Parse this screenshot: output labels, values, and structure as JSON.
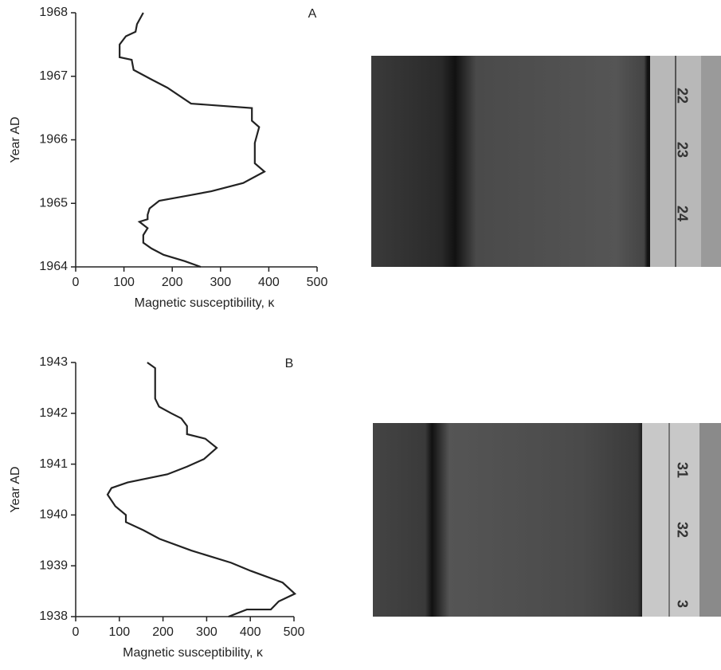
{
  "chart_data": [
    {
      "type": "line",
      "annotation": "A",
      "xlabel": "Magnetic susceptibility, κ",
      "ylabel": "Year AD",
      "color": "#222222",
      "xlim": [
        0,
        500
      ],
      "xticks": [
        0,
        100,
        200,
        300,
        400,
        500
      ],
      "ylim": [
        1964,
        1968
      ],
      "yticks": [
        1964,
        1965,
        1966,
        1967,
        1968
      ],
      "values": [
        140,
        127,
        124,
        104,
        91,
        91,
        116,
        120,
        157,
        190,
        239,
        365,
        365,
        380,
        371,
        371,
        391,
        347,
        281,
        231,
        173,
        153,
        149,
        149,
        132,
        149,
        140,
        140,
        157,
        182,
        226,
        259
      ],
      "y": [
        1968.0,
        1967.82,
        1967.7,
        1967.63,
        1967.5,
        1967.3,
        1967.26,
        1967.1,
        1966.95,
        1966.82,
        1966.57,
        1966.5,
        1966.3,
        1966.2,
        1965.95,
        1965.63,
        1965.5,
        1965.32,
        1965.19,
        1965.12,
        1965.04,
        1964.92,
        1964.82,
        1964.75,
        1964.71,
        1964.61,
        1964.5,
        1964.38,
        1964.29,
        1964.19,
        1964.09,
        1964.0
      ]
    },
    {
      "type": "line",
      "annotation": "B",
      "xlabel": "Magnetic susceptibility, κ",
      "ylabel": "Year AD",
      "color": "#222222",
      "xlim": [
        0,
        500
      ],
      "xticks": [
        0,
        100,
        200,
        300,
        400,
        500
      ],
      "ylim": [
        1938,
        1943
      ],
      "yticks": [
        1938,
        1939,
        1940,
        1941,
        1942,
        1943
      ],
      "values": [
        164,
        182,
        182,
        191,
        219,
        242,
        255,
        255,
        297,
        323,
        294,
        255,
        210,
        119,
        82,
        73,
        91,
        115,
        115,
        155,
        192,
        265,
        356,
        401,
        474,
        502,
        465,
        447,
        392,
        350
      ],
      "y": [
        1943.0,
        1942.89,
        1942.29,
        1942.13,
        1942.0,
        1941.9,
        1941.75,
        1941.59,
        1941.5,
        1941.32,
        1941.1,
        1940.95,
        1940.8,
        1940.64,
        1940.53,
        1940.4,
        1940.17,
        1940.0,
        1939.86,
        1939.7,
        1939.53,
        1939.3,
        1939.06,
        1938.9,
        1938.67,
        1938.45,
        1938.3,
        1938.14,
        1938.14,
        1938.0
      ]
    }
  ],
  "photos": [
    {
      "ruler_labels": [
        "22",
        "23",
        "24"
      ]
    },
    {
      "ruler_labels": [
        "31",
        "32",
        "3"
      ]
    }
  ]
}
